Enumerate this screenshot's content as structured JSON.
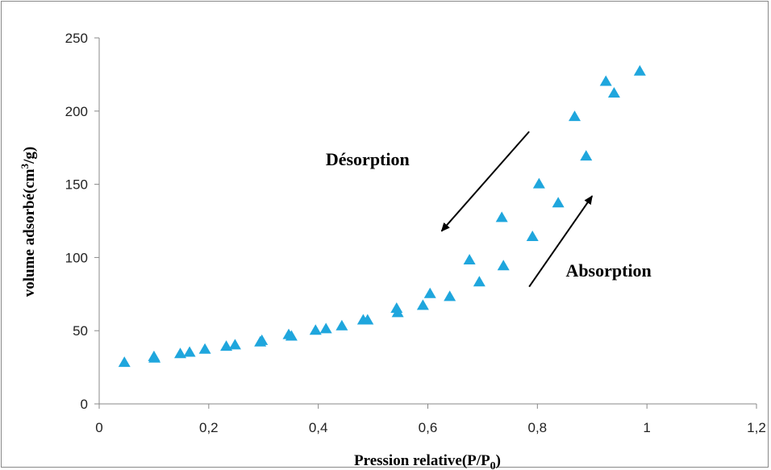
{
  "chart_data": {
    "type": "scatter",
    "xlim": [
      0,
      1.2
    ],
    "ylim": [
      0,
      250
    ],
    "x_ticks": [
      "0",
      "0,2",
      "0,4",
      "0,6",
      "0,8",
      "1",
      "1,2"
    ],
    "y_ticks": [
      "0",
      "50",
      "100",
      "150",
      "200",
      "250"
    ],
    "xlabel": {
      "main": "Pression relative(P/P",
      "sub": "0",
      "end": ")"
    },
    "ylabel": {
      "main": "volume adsorbé(cm",
      "sup": "3",
      "end": "/g)"
    },
    "grid": false,
    "marker_color": "#1FA6DD",
    "series": [
      {
        "marker": "triangle",
        "x": [
          0.046,
          0.1,
          0.101,
          0.148,
          0.165,
          0.193,
          0.232,
          0.248,
          0.294,
          0.297,
          0.346,
          0.351,
          0.395,
          0.414,
          0.443,
          0.482,
          0.49,
          0.543,
          0.545,
          0.591,
          0.604,
          0.64,
          0.676,
          0.694,
          0.735,
          0.738,
          0.791,
          0.803,
          0.838,
          0.868,
          0.889,
          0.925,
          0.94,
          0.987
        ],
        "y": [
          28,
          32,
          31,
          34,
          35,
          37,
          39,
          40,
          42,
          43,
          47,
          46,
          50,
          51,
          53,
          57,
          57,
          65,
          62,
          67,
          75,
          73,
          98,
          83,
          127,
          94,
          114,
          150,
          137,
          196,
          169,
          220,
          212,
          227
        ]
      }
    ],
    "annotations": [
      {
        "text": "Désorption",
        "x": 0.49,
        "y": 163
      },
      {
        "text": "Absorption",
        "x": 0.93,
        "y": 87
      }
    ],
    "arrows": [
      {
        "from": [
          0.785,
          186
        ],
        "to": [
          0.625,
          118
        ]
      },
      {
        "from": [
          0.785,
          80
        ],
        "to": [
          0.9,
          142
        ]
      }
    ]
  }
}
